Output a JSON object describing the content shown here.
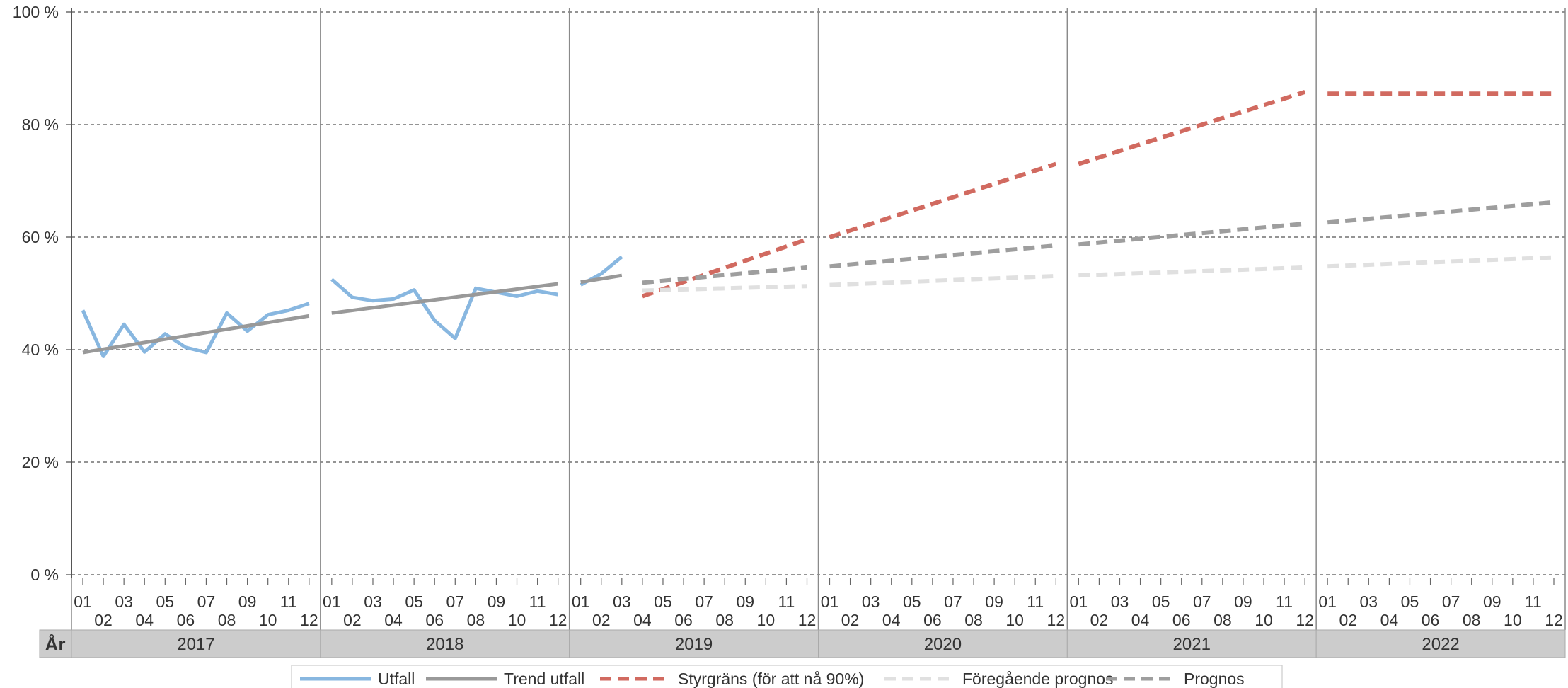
{
  "chart_data": {
    "type": "line",
    "title": "",
    "xlabel": "År",
    "ylabel": "",
    "ylim": [
      0,
      100
    ],
    "y_ticks": [
      "0 %",
      "20 %",
      "40 %",
      "60 %",
      "80 %",
      "100 %"
    ],
    "years": [
      "2017",
      "2018",
      "2019",
      "2020",
      "2021",
      "2022"
    ],
    "months": [
      "01",
      "02",
      "03",
      "04",
      "05",
      "06",
      "07",
      "08",
      "09",
      "10",
      "11",
      "12"
    ],
    "grid": "horizontal dashed",
    "legend_position": "bottom-center",
    "series": [
      {
        "name": "Utfall",
        "color": "#88b7e0",
        "style": "solid",
        "segments": [
          {
            "year": "2017",
            "values": [
              47.0,
              38.8,
              44.5,
              39.6,
              42.8,
              40.4,
              39.5,
              46.5,
              43.3,
              46.2,
              47.0,
              48.2
            ]
          },
          {
            "year": "2018",
            "values": [
              52.5,
              49.3,
              48.7,
              49.0,
              50.6,
              45.2,
              42.0,
              50.9,
              50.2,
              49.5,
              50.4,
              49.8
            ]
          },
          {
            "year": "2019",
            "values": [
              51.5,
              53.5,
              56.5
            ]
          }
        ]
      },
      {
        "name": "Trend utfall",
        "color": "#999999",
        "style": "solid",
        "segments": [
          {
            "year": "2017",
            "months": [
              1,
              12
            ],
            "values": [
              39.5,
              46.0
            ]
          },
          {
            "year": "2018",
            "months": [
              1,
              12
            ],
            "values": [
              46.5,
              51.7
            ]
          },
          {
            "year": "2019",
            "months": [
              1,
              3
            ],
            "values": [
              52.0,
              53.2
            ]
          }
        ]
      },
      {
        "name": "Styrgräns (för att nå 90%)",
        "color": "#d16a60",
        "style": "dashed",
        "segments": [
          {
            "year": "2019",
            "months": [
              4,
              12
            ],
            "values": [
              49.5,
              59.6
            ]
          },
          {
            "year": "2020",
            "months": [
              1,
              12
            ],
            "values": [
              60.0,
              73.0
            ]
          },
          {
            "year": "2021",
            "months": [
              1,
              12
            ],
            "values": [
              73.0,
              85.8
            ]
          },
          {
            "year": "2022",
            "months": [
              1,
              12
            ],
            "values": [
              85.5,
              85.5
            ]
          }
        ]
      },
      {
        "name": "Föregående prognos",
        "color": "#e0e0e0",
        "style": "dashed",
        "segments": [
          {
            "year": "2019",
            "months": [
              4,
              12
            ],
            "values": [
              50.5,
              51.3
            ]
          },
          {
            "year": "2020",
            "months": [
              1,
              12
            ],
            "values": [
              51.5,
              53.1
            ]
          },
          {
            "year": "2021",
            "months": [
              1,
              12
            ],
            "values": [
              53.2,
              54.6
            ]
          },
          {
            "year": "2022",
            "months": [
              1,
              12
            ],
            "values": [
              54.8,
              56.4
            ]
          }
        ]
      },
      {
        "name": "Prognos",
        "color": "#9e9e9e",
        "style": "dashed",
        "segments": [
          {
            "year": "2019",
            "months": [
              4,
              12
            ],
            "values": [
              51.9,
              54.6
            ]
          },
          {
            "year": "2020",
            "months": [
              1,
              12
            ],
            "values": [
              54.8,
              58.5
            ]
          },
          {
            "year": "2021",
            "months": [
              1,
              12
            ],
            "values": [
              58.7,
              62.4
            ]
          },
          {
            "year": "2022",
            "months": [
              1,
              12
            ],
            "values": [
              62.6,
              66.2
            ]
          }
        ]
      }
    ]
  }
}
